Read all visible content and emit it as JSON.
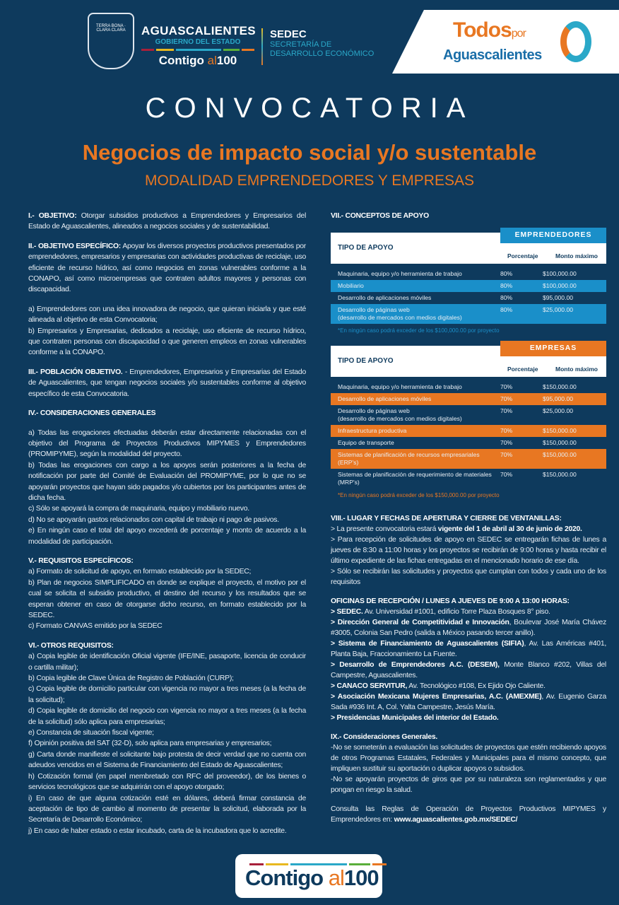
{
  "colors": {
    "background": "#0e3a5d",
    "orange": "#e87722",
    "blue": "#1a8fc9",
    "teal": "#2aa8c8"
  },
  "header": {
    "crest_text": "TERRA BONA · CLARA CLARA",
    "gov_name": "AGUASCALIENTES",
    "gov_sub": "GOBIERNO DEL ESTADO",
    "slogan_a": "Contigo",
    "slogan_b": "al",
    "slogan_c": "100",
    "sedec": "SEDEC",
    "sedec_sub1": "SECRETARÍA DE",
    "sedec_sub2": "DESARROLLO ECONÓMICO",
    "todos": "Todos",
    "por": "por",
    "todos_b": "Aguascalientes"
  },
  "title": "CONVOCATORIA",
  "subtitle": "Negocios de impacto social y/o sustentable",
  "modality": "MODALIDAD EMPRENDEDORES Y EMPRESAS",
  "left": [
    {
      "paras": [
        {
          "b": "I.- OBJETIVO:",
          "t": " Otorgar subsidios productivos a Emprendedores y Empresarios del Estado de Aguascalientes, alineados a negocios sociales y de sustentabilidad."
        }
      ]
    },
    {
      "paras": [
        {
          "b": "II.- OBJETIVO ESPECÍFICO:",
          "t": " Apoyar los diversos proyectos productivos presentados por emprendedores, empresarios y empresarias con actividades productivas de reciclaje, uso eficiente de recurso hídrico, así como negocios en zonas vulnerables conforme a la CONAPO, así como microempresas que contraten adultos mayores y personas con discapacidad."
        }
      ]
    },
    {
      "paras": [
        {
          "t": "a) Emprendedores con una idea innovadora de negocio, que quieran iniciarla y que esté alineada al objetivo de esta Convocatoria;"
        },
        {
          "t": "b) Empresarios y Empresarias, dedicados a reciclaje, uso eficiente de recurso hídrico, que contraten personas con discapacidad o que generen empleos en zonas vulnerables conforme a la CONAPO."
        }
      ]
    },
    {
      "paras": [
        {
          "b": "III.- POBLACIÓN OBJETIVO.",
          "t": " - Emprendedores, Empresarios y Empresarias del Estado de Aguascalientes, que tengan negocios sociales y/o sustentables conforme al objetivo específico de esta Convocatoria."
        }
      ]
    },
    {
      "title": "IV.- CONSIDERACIONES GENERALES",
      "spacer": true,
      "paras": [
        {
          "t": "a) Todas las erogaciones efectuadas deberán estar directamente relacionadas con el objetivo del Programa de Proyectos Productivos MIPYMES y Emprendedores (PROMIPYME), según la modalidad del proyecto."
        },
        {
          "t": "b) Todas las erogaciones con cargo a los apoyos serán posteriores a la fecha de notificación por parte del Comité de Evaluación del PROMIPYME, por lo que no se apoyarán proyectos que hayan sido pagados y/o cubiertos por los participantes antes de dicha fecha."
        },
        {
          "t": "c) Sólo se apoyará la compra de maquinaria, equipo y mobiliario nuevo."
        },
        {
          "t": "d) No se apoyarán gastos relacionados con capital de trabajo ni pago de pasivos."
        },
        {
          "t": "e) En ningún caso el total del apoyo excederá de porcentaje y monto de acuerdo a la modalidad de participación."
        }
      ]
    },
    {
      "title": "V.- REQUISITOS ESPECÍFICOS:",
      "paras": [
        {
          "t": "a) Formato de solicitud de apoyo, en formato establecido por la SEDEC;"
        },
        {
          "t": "b) Plan de negocios SIMPLIFICADO en donde se explique el proyecto, el motivo por el cual se solicita el subsidio productivo, el destino del recurso y los resultados que se esperan obtener en caso de otorgarse dicho recurso, en formato establecido por la SEDEC."
        },
        {
          "t": "c) Formato CANVAS emitido por la SEDEC"
        }
      ]
    },
    {
      "title": "VI.- OTROS REQUISITOS:",
      "paras": [
        {
          "t": "a) Copia legible de identificación Oficial vigente (IFE/INE, pasaporte, licencia de conducir o cartilla militar);"
        },
        {
          "t": "b) Copia legible de Clave Única de Registro de Población (CURP);"
        },
        {
          "t": "c) Copia legible de domicilio particular con vigencia no mayor a tres meses (a la fecha de la solicitud);"
        },
        {
          "t": "d) Copia legible de domicilio del negocio con vigencia no mayor a tres meses (a la fecha de la solicitud) sólo aplica para empresarias;"
        },
        {
          "t": "e) Constancia de situación fiscal vigente;"
        },
        {
          "t": "f) Opinión positiva del SAT (32-D), solo aplica para empresarias y empresarios;"
        },
        {
          "t": "g) Carta donde manifieste el solicitante bajo protesta de decir verdad que no cuenta con adeudos vencidos en el Sistema de Financiamiento del Estado de Aguascalientes;"
        },
        {
          "t": "h) Cotización formal (en papel membretado con RFC del proveedor), de los bienes o servicios tecnológicos que se adquirirán con el apoyo otorgado;"
        },
        {
          "t": "i) En caso de que alguna cotización esté en dólares, deberá firmar constancia de aceptación de tipo de cambio al momento de presentar la solicitud, elaborada por la Secretaría de Desarrollo Económico;"
        },
        {
          "t": "j) En caso de haber estado o estar incubado, carta de la incubadora que lo acredite."
        }
      ]
    }
  ],
  "conceptos": {
    "title": "VII.- CONCEPTOS DE APOYO",
    "tables": [
      {
        "category": "EMPRENDEDORES",
        "color": "#1a8fc9",
        "tipo": "TIPO DE APOYO",
        "col_pct": "Porcentaje",
        "col_max": "Monto máximo",
        "rows": [
          [
            "Maquinaria, equipo y/o herramienta de trabajo",
            "80%",
            "$100,000.00"
          ],
          [
            "Mobiliario",
            "80%",
            "$100,000.00"
          ],
          [
            "Desarrollo de aplicaciones móviles",
            "80%",
            "$95,000.00"
          ],
          [
            "Desarrollo de páginas web\n(desarrollo de mercados con medios digitales)",
            "80%",
            "$25,000.00"
          ]
        ],
        "note": "*En ningún caso podrá exceder de los $100,000.00 por proyecto"
      },
      {
        "category": "EMPRESAS",
        "color": "#e87722",
        "tipo": "TIPO DE APOYO",
        "col_pct": "Porcentaje",
        "col_max": "Monto máximo",
        "rows": [
          [
            "Maquinaria, equipo y/o herramienta de trabajo",
            "70%",
            "$150,000.00"
          ],
          [
            "Desarrollo de aplicaciones móviles",
            "70%",
            "$95,000.00"
          ],
          [
            "Desarrollo de páginas web\n(desarrollo de mercados con medios digitales)",
            "70%",
            "$25,000.00"
          ],
          [
            "Infraestructura productiva",
            "70%",
            "$150,000.00"
          ],
          [
            "Equipo de transporte",
            "70%",
            "$150,000.00"
          ],
          [
            "Sistemas de planificación de recursos empresariales (ERP's)",
            "70%",
            "$150,000.00"
          ],
          [
            "Sistemas de planificación de requerimiento de materiales (MRP's)",
            "70%",
            "$150,000.00"
          ]
        ],
        "note": "*En ningún caso podrá exceder de los $150,000.00 por proyecto"
      }
    ]
  },
  "right": [
    {
      "title": "VIII.- LUGAR Y FECHAS DE APERTURA Y CIERRE DE VENTANILLAS:",
      "paras": [
        {
          "t": "> La presente convocatoria estará ",
          "b2": "vigente del 1 de abril al 30 de junio de 2020."
        },
        {
          "t": "> Para recepción de solicitudes de apoyo en SEDEC se entregarán fichas de lunes a jueves de 8:30 a 11:00 horas y los proyectos se recibirán de 9:00 horas y hasta recibir el último expediente de las fichas entregadas en el mencionado horario de ese día."
        },
        {
          "t": "> Sólo se recibirán las solicitudes y proyectos que cumplan con todos y cada uno de los requisitos"
        }
      ]
    },
    {
      "title": "OFICINAS DE RECEPCIÓN / LUNES A JUEVES DE 9:00 A 13:00 HORAS:",
      "paras": [
        {
          "b": "> SEDEC.",
          "t": " Av. Universidad #1001, edificio Torre Plaza Bosques 8° piso."
        },
        {
          "b": "> Dirección General de Competitividad e Innovación",
          "t": ", Boulevar José María Chávez #3005, Colonia San Pedro (salida a México pasando tercer anillo)."
        },
        {
          "b": "> Sistema de Financiamiento de Aguascalientes (SIFIA)",
          "t": ", Av. Las Américas #401, Planta Baja, Fraccionamiento La Fuente."
        },
        {
          "b": "> Desarrollo de Emprendedores A.C. (DESEM),",
          "t": " Monte Blanco #202, Villas del Campestre, Aguascalientes."
        },
        {
          "b": "> CANACO SERVITUR,",
          "t": " Av. Tecnológico #108, Ex Ejido Ojo Caliente."
        },
        {
          "b": "> Asociación Mexicana Mujeres Empresarias, A.C. (AMEXME)",
          "t": ", Av. Eugenio Garza Sada #936 Int. A, Col. Yalta Campestre, Jesús María."
        },
        {
          "b": "> Presidencias Municipales del interior del Estado."
        }
      ]
    },
    {
      "title": "IX.- Consideraciones Generales.",
      "paras": [
        {
          "t": "-No se someterán a evaluación las solicitudes de proyectos que estén recibiendo apoyos de otros Programas Estatales, Federales y Municipales para el mismo concepto, que impliquen sustituir su aportación o duplicar apoyos o subsidios."
        },
        {
          "t": "-No se apoyarán proyectos de giros que por su naturaleza son reglamentados y que pongan en riesgo la salud."
        }
      ]
    },
    {
      "paras": [
        {
          "t": "Consulta las Reglas de Operación de Proyectos Productivos MIPYMES y Emprendedores en: ",
          "b2": "www.aguascalientes.gob.mx/SEDEC/"
        }
      ]
    }
  ],
  "footer": {
    "a": "Contigo",
    "b": "al",
    "c": "100"
  }
}
